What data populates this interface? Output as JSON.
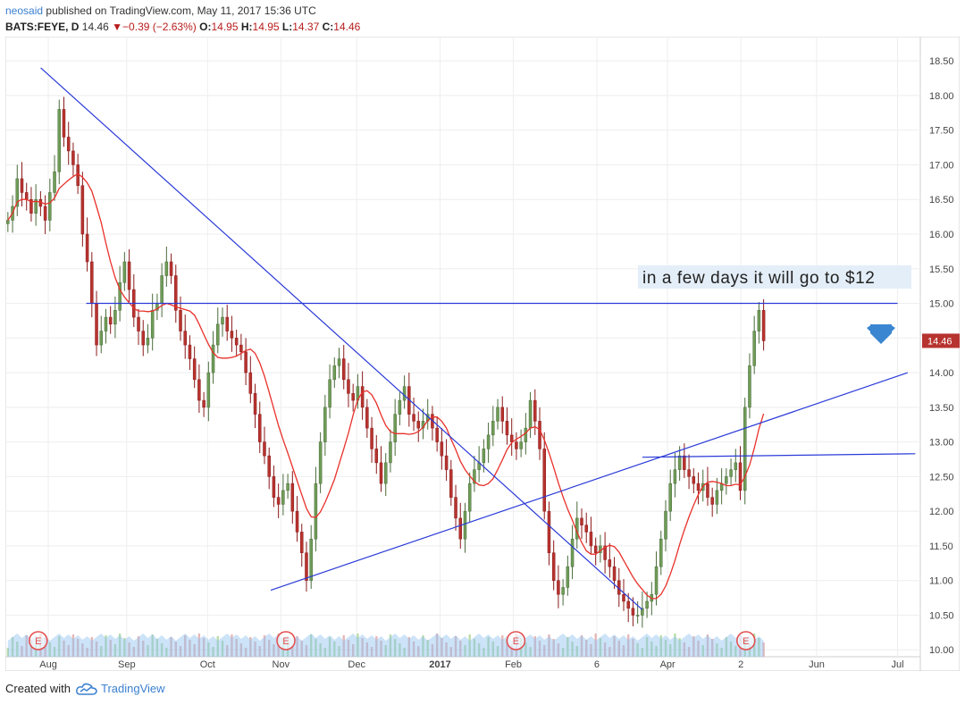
{
  "header": {
    "author": "neosaid",
    "published_text": "published on TradingView.com, May 11, 2017 15:36 UTC",
    "symbol": "BATS:FEYE, D",
    "last": "14.46",
    "change": "▼−0.39 (−2.63%)",
    "o_label": "O:",
    "o_value": "14.95",
    "h_label": "H:",
    "h_value": "14.95",
    "l_label": "L:",
    "l_value": "14.37",
    "c_label": "C:",
    "c_value": "14.46"
  },
  "footer": {
    "created_with": "Created with",
    "brand": "TradingView"
  },
  "colors": {
    "up": "#4a6b3a",
    "up_fill": "#6f9c57",
    "down": "#8b1a1a",
    "down_fill": "#b7332f",
    "ma": "#e8302a",
    "trend": "#2a3ad8",
    "volume_area": "#8fc2ef",
    "arrow": "#3a86d0",
    "grid": "#eeeeee"
  },
  "chart_data": {
    "type": "candlestick",
    "symbol": "BATS:FEYE",
    "interval": "D",
    "ylim": [
      9.9,
      18.85
    ],
    "y_ticks": [
      "10.00",
      "10.50",
      "11.00",
      "11.50",
      "12.00",
      "12.50",
      "13.00",
      "13.50",
      "14.00",
      "14.50",
      "15.00",
      "15.50",
      "16.00",
      "16.50",
      "17.00",
      "17.50",
      "18.00",
      "18.50"
    ],
    "x_ticks": [
      "Aug",
      "Sep",
      "Oct",
      "Nov",
      "Dec",
      "2017",
      "Feb",
      "6",
      "Apr",
      "2",
      "Jun",
      "Jul"
    ],
    "current_price_label": "14.46",
    "annotation": "in a few days it will go to $12",
    "earnings_marker": "E",
    "closes": [
      16.2,
      16.4,
      16.8,
      16.6,
      16.5,
      16.3,
      16.5,
      16.4,
      16.2,
      16.6,
      16.9,
      17.8,
      17.4,
      17.2,
      17.0,
      16.7,
      16.0,
      15.6,
      15.0,
      14.4,
      14.6,
      14.8,
      14.7,
      14.9,
      15.3,
      15.6,
      15.2,
      14.8,
      14.6,
      14.4,
      14.5,
      14.9,
      15.0,
      15.4,
      15.6,
      15.4,
      14.9,
      14.6,
      14.4,
      14.2,
      13.9,
      13.6,
      13.5,
      14.0,
      14.4,
      14.7,
      14.8,
      14.6,
      14.5,
      14.4,
      14.3,
      14.0,
      13.7,
      13.4,
      13.0,
      12.8,
      12.5,
      12.2,
      12.1,
      12.3,
      12.4,
      12.0,
      11.7,
      11.4,
      11.0,
      11.6,
      12.4,
      13.0,
      13.5,
      13.9,
      14.1,
      14.2,
      13.9,
      13.7,
      13.6,
      13.8,
      13.5,
      13.2,
      12.9,
      12.7,
      12.4,
      12.7,
      13.0,
      13.4,
      13.6,
      13.8,
      13.4,
      13.3,
      13.2,
      13.3,
      13.4,
      13.2,
      13.0,
      12.8,
      12.6,
      12.2,
      11.9,
      11.6,
      12.0,
      12.4,
      12.6,
      12.7,
      12.9,
      13.1,
      13.3,
      13.5,
      13.3,
      13.1,
      13.0,
      12.9,
      13.0,
      13.2,
      13.6,
      13.3,
      12.9,
      12.0,
      11.4,
      11.0,
      10.8,
      10.9,
      11.2,
      11.6,
      11.9,
      11.8,
      11.7,
      11.5,
      11.4,
      11.5,
      11.3,
      11.2,
      11.0,
      10.8,
      10.7,
      10.6,
      10.5,
      10.5,
      10.6,
      10.7,
      10.8,
      11.2,
      11.6,
      12.0,
      12.4,
      12.6,
      12.8,
      12.6,
      12.5,
      12.4,
      12.3,
      12.4,
      12.2,
      12.1,
      12.3,
      12.4,
      12.5,
      12.6,
      12.7,
      12.3,
      13.5,
      14.1,
      14.6,
      14.9,
      14.46
    ],
    "trendlines": [
      {
        "from": [
          "2016-07-29",
          18.4
        ],
        "to": [
          "2017-03-24",
          10.58
        ]
      },
      {
        "from": [
          "2016-10-28",
          10.86
        ],
        "to": [
          "2017-07-07",
          14.0
        ]
      },
      {
        "from": [
          "2016-08-16",
          15.0
        ],
        "to": [
          "2017-07-03",
          15.0
        ]
      },
      {
        "from": [
          "2017-03-24",
          12.78
        ],
        "to": [
          "2017-07-10",
          12.83
        ]
      }
    ]
  }
}
